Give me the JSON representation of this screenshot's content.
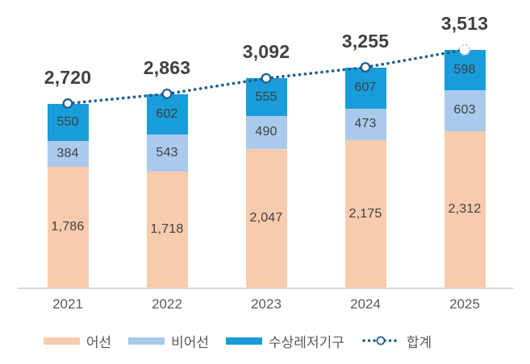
{
  "chart_data": {
    "type": "bar",
    "subtype": "stacked-columns-with-total-line",
    "title": "",
    "categories": [
      "2021",
      "2022",
      "2023",
      "2024",
      "2025"
    ],
    "series": [
      {
        "name": "어선",
        "color": "#F8CBAD",
        "values": [
          1786,
          1718,
          2047,
          2175,
          2312
        ]
      },
      {
        "name": "비어선",
        "color": "#A9CAEC",
        "values": [
          384,
          543,
          490,
          473,
          603
        ]
      },
      {
        "name": "수상레저기구",
        "color": "#189DDA",
        "values": [
          550,
          602,
          555,
          607,
          598
        ]
      }
    ],
    "total_line": {
      "name": "합계",
      "color": "#1F5C8B",
      "style": "dotted",
      "marker": "open-circle",
      "last_marker": "dashed-open-circle",
      "last_marker_color": "#C3C8CD",
      "values": [
        2720,
        2863,
        3092,
        3255,
        3513
      ]
    },
    "value_label_color": "#404040",
    "total_label_color": "#404040",
    "axis_label_color": "#595959",
    "axis_line_color": "#D9D9D9",
    "grid": false,
    "y_axis_visible": false,
    "legend_position": "bottom",
    "ylim": [
      0,
      3560
    ]
  }
}
